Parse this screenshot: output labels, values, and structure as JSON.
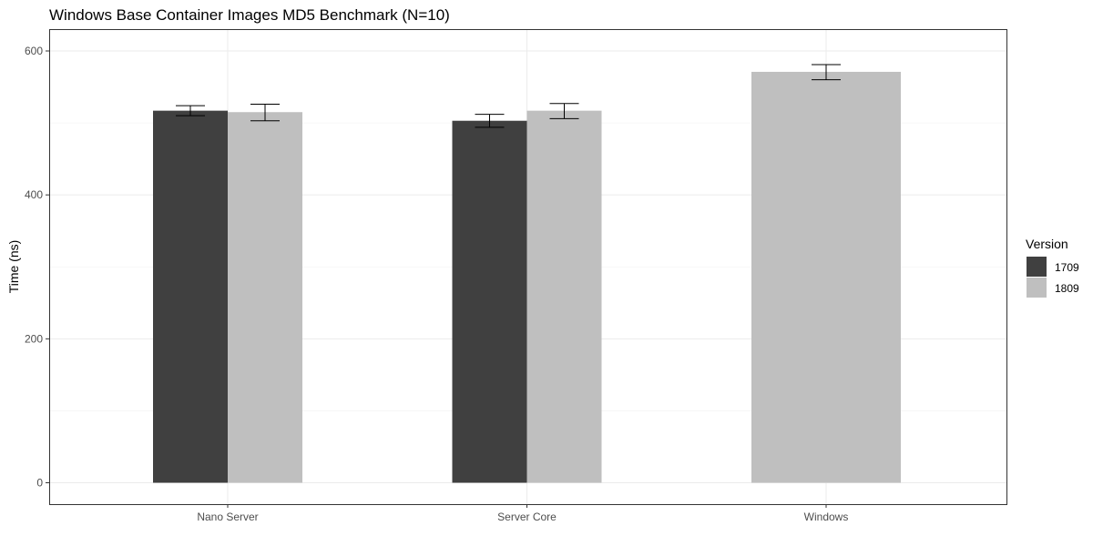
{
  "chart_data": {
    "type": "bar",
    "title": "Windows Base Container Images MD5 Benchmark (N=10)",
    "xlabel": "",
    "ylabel": "Time (ns)",
    "categories": [
      "Nano Server",
      "Server Core",
      "Windows"
    ],
    "ylim": [
      0,
      630
    ],
    "yticks": [
      0,
      200,
      400,
      600
    ],
    "grid": true,
    "legend": {
      "title": "Version",
      "position": "right"
    },
    "series": [
      {
        "name": "1709",
        "color": "#404040",
        "values": [
          517,
          503,
          null
        ],
        "error_low": [
          510,
          494,
          null
        ],
        "error_high": [
          524,
          512,
          null
        ]
      },
      {
        "name": "1809",
        "color": "#bfbfbf",
        "values": [
          515,
          517,
          571
        ],
        "error_low": [
          503,
          506,
          560
        ],
        "error_high": [
          526,
          527,
          581
        ]
      }
    ]
  }
}
